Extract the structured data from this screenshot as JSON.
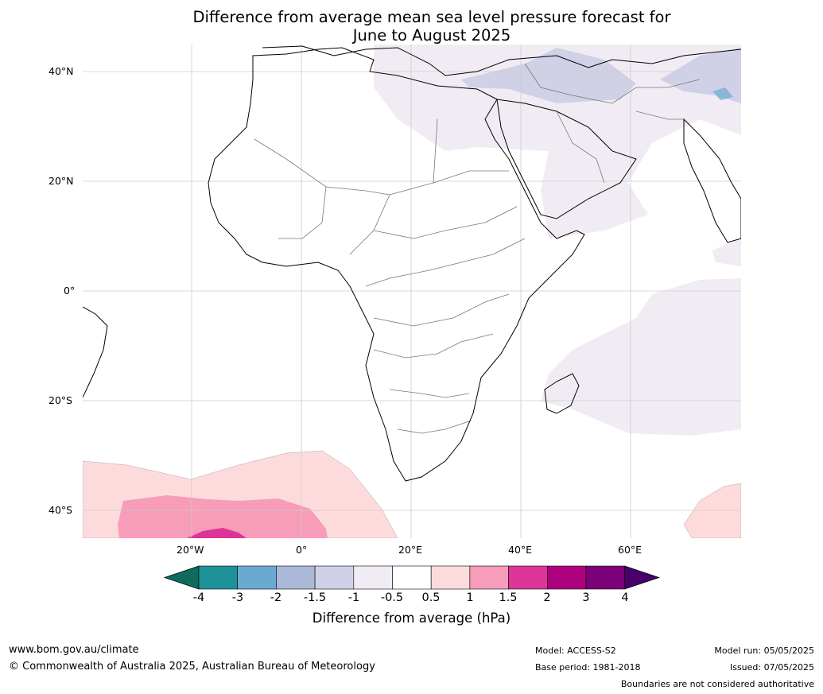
{
  "title_line1": "Difference from average mean sea level pressure forecast for",
  "title_line2": "June to August 2025",
  "lat_labels": [
    "40°N",
    "20°N",
    "0°",
    "20°S",
    "40°S"
  ],
  "lon_labels": [
    "20°W",
    "0°",
    "20°E",
    "40°E",
    "60°E"
  ],
  "colorbar": {
    "ticks": [
      "-4",
      "-3",
      "-2",
      "-1.5",
      "-1",
      "-0.5",
      "0.5",
      "1",
      "1.5",
      "2",
      "3",
      "4"
    ],
    "colors": [
      "#0f6b5d",
      "#1f9199",
      "#6aaad2",
      "#aab9d8",
      "#d0d1e6",
      "#f1ecf4",
      "#ffffff",
      "#fddbdc",
      "#f79cb9",
      "#dd3497",
      "#ae017e",
      "#7a0177",
      "#49006a"
    ],
    "label": "Difference from average (hPa)"
  },
  "footer": {
    "website": "www.bom.gov.au/climate",
    "copyright": "© Commonwealth of Australia 2025, Australian Bureau of Meteorology",
    "model": "Model: ACCESS-S2",
    "base_period": "Base period: 1981-2018",
    "model_run": "Model run: 05/05/2025",
    "issued": "Issued: 07/05/2025",
    "disclaimer": "Boundaries are not considered authoritative"
  }
}
